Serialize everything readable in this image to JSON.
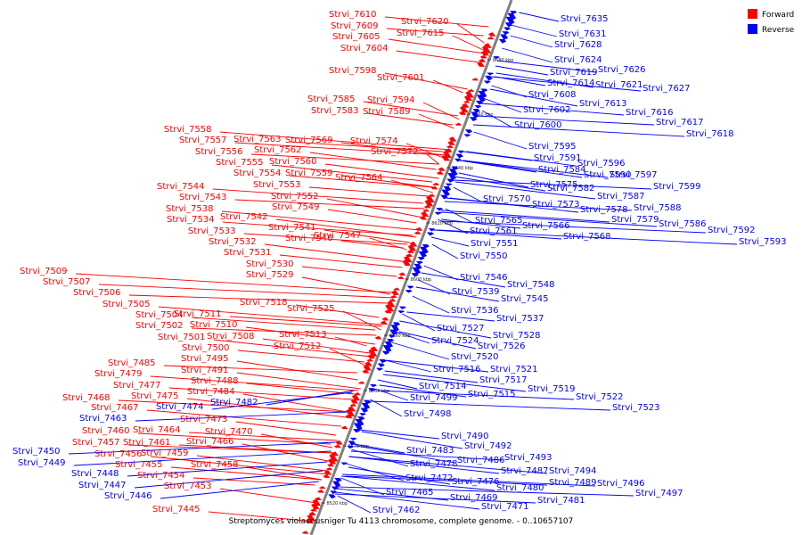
{
  "caption": "Streptomyces violaceusniger Tu 4113 chromosome, complete genome. - 0..10657107",
  "legend": [
    {
      "label": "Forward",
      "color": "#ff0000"
    },
    {
      "label": "Reverse",
      "color": "#0000ff"
    }
  ],
  "colors": {
    "forward": "#ff0000",
    "reverse": "#0000ff",
    "axis": "#808080"
  },
  "ticks": [
    "8680 kbp",
    "8660 kbp",
    "8640 kbp",
    "8620 kbp",
    "8600 kbp",
    "8580 kbp",
    "8560 kbp",
    "8540 kbp",
    "8520 kbp"
  ],
  "forward_genes": [
    "Strvi_7610",
    "Strvi_7609",
    "Strvi_7620",
    "Strvi_7605",
    "Strvi_7615",
    "Strvi_7604",
    "Strvi_7598",
    "Strvi_7601",
    "Strvi_7585",
    "Strvi_7594",
    "Strvi_7583",
    "Strvi_7589",
    "Strvi_7558",
    "Strvi_7557",
    "Strvi_7563",
    "Strvi_7569",
    "Strvi_7574",
    "Strvi_7556",
    "Strvi_7562",
    "Strvi_7572",
    "Strvi_7555",
    "Strvi_7560",
    "Strvi_7554",
    "Strvi_7559",
    "Strvi_7564",
    "Strvi_7553",
    "Strvi_7544",
    "Strvi_7552",
    "Strvi_7543",
    "Strvi_7549",
    "Strvi_7538",
    "Strvi_7542",
    "Strvi_7534",
    "Strvi_7541",
    "Strvi_7533",
    "Strvi_7540",
    "Strvi_7547",
    "Strvi_7532",
    "Strvi_7531",
    "Strvi_7530",
    "Strvi_7529",
    "Strvi_7509",
    "Strvi_7507",
    "Strvi_7506",
    "Strvi_7518",
    "Strvi_7505",
    "Strvi_7525",
    "Strvi_7504",
    "Strvi_7511",
    "Strvi_7502",
    "Strvi_7510",
    "Strvi_7501",
    "Strvi_7508",
    "Strvi_7513",
    "Strvi_7512",
    "Strvi_7500",
    "Strvi_7495",
    "Strvi_7485",
    "Strvi_7491",
    "Strvi_7479",
    "Strvi_7488",
    "Strvi_7477",
    "Strvi_7484",
    "Strvi_7475",
    "Strvi_7468",
    "Strvi_7467",
    "Strvi_7473",
    "Strvi_7464",
    "Strvi_7470",
    "Strvi_7460",
    "Strvi_7466",
    "Strvi_7457",
    "Strvi_7461",
    "Strvi_7456",
    "Strvi_7459",
    "Strvi_7455",
    "Strvi_7458",
    "Strvi_7454",
    "Strvi_7453",
    "Strvi_7445"
  ],
  "reverse_genes": [
    "Strvi_7635",
    "Strvi_7631",
    "Strvi_7628",
    "Strvi_7624",
    "Strvi_7626",
    "Strvi_7619",
    "Strvi_7614",
    "Strvi_7621",
    "Strvi_7627",
    "Strvi_7608",
    "Strvi_7613",
    "Strvi_7602",
    "Strvi_7616",
    "Strvi_7617",
    "Strvi_7600",
    "Strvi_7618",
    "Strvi_7595",
    "Strvi_7591",
    "Strvi_7596",
    "Strvi_7584",
    "Strvi_7590",
    "Strvi_7597",
    "Strvi_7575",
    "Strvi_7582",
    "Strvi_7599",
    "Strvi_7570",
    "Strvi_7573",
    "Strvi_7587",
    "Strvi_7578",
    "Strvi_7588",
    "Strvi_7579",
    "Strvi_7586",
    "Strvi_7565",
    "Strvi_7566",
    "Strvi_7592",
    "Strvi_7561",
    "Strvi_7568",
    "Strvi_7593",
    "Strvi_7551",
    "Strvi_7550",
    "Strvi_7546",
    "Strvi_7548",
    "Strvi_7539",
    "Strvi_7545",
    "Strvi_7536",
    "Strvi_7537",
    "Strvi_7527",
    "Strvi_7528",
    "Strvi_7524",
    "Strvi_7526",
    "Strvi_7520",
    "Strvi_7516",
    "Strvi_7521",
    "Strvi_7517",
    "Strvi_7514",
    "Strvi_7515",
    "Strvi_7519",
    "Strvi_7499",
    "Strvi_7522",
    "Strvi_7523",
    "Strvi_7498",
    "Strvi_7482",
    "Strvi_7474",
    "Strvi_7463",
    "Strvi_7490",
    "Strvi_7492",
    "Strvi_7483",
    "Strvi_7486",
    "Strvi_7493",
    "Strvi_7450",
    "Strvi_7478",
    "Strvi_7487",
    "Strvi_7494",
    "Strvi_7449",
    "Strvi_7472",
    "Strvi_7476",
    "Strvi_7489",
    "Strvi_7496",
    "Strvi_7448",
    "Strvi_7480",
    "Strvi_7447",
    "Strvi_7465",
    "Strvi_7497",
    "Strvi_7446",
    "Strvi_7469",
    "Strvi_7481",
    "Strvi_7471",
    "Strvi_7462"
  ]
}
